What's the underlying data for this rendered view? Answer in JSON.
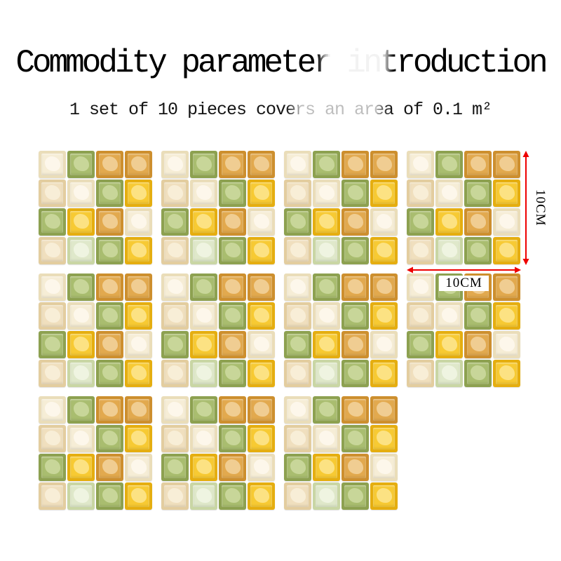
{
  "header": {
    "title": "Commodity parameter introduction",
    "subtitle": "1 set of 10 pieces covers an area of 0.1 m²"
  },
  "dimensions": {
    "height_label": "10CM",
    "width_label": "10CM",
    "arrow_color": "#ee0000"
  },
  "sheet": {
    "rows": [
      4,
      4,
      3
    ],
    "pattern": [
      [
        "ivory",
        "green",
        "caramel",
        "caramel"
      ],
      [
        "beige",
        "ivory",
        "green",
        "yellow"
      ],
      [
        "green",
        "yellow",
        "caramel",
        "ivory"
      ],
      [
        "beige",
        "mint",
        "green",
        "yellow"
      ]
    ]
  },
  "palette": {
    "ivory": {
      "rim": "#eaddb9",
      "body": "#f6edd6",
      "shine": "#fdf8ec"
    },
    "beige": {
      "rim": "#e3cd9f",
      "body": "#f0dfbe",
      "shine": "#f8eed8"
    },
    "mint": {
      "rim": "#c9d6a4",
      "body": "#dfe8ca",
      "shine": "#eff4e2"
    },
    "green": {
      "rim": "#8da150",
      "body": "#a9bd6f",
      "shine": "#c9d79b"
    },
    "caramel": {
      "rim": "#cd8f2e",
      "body": "#e2a94e",
      "shine": "#f0cf96"
    },
    "yellow": {
      "rim": "#e5ae10",
      "body": "#f7ca33",
      "shine": "#fce388"
    }
  }
}
